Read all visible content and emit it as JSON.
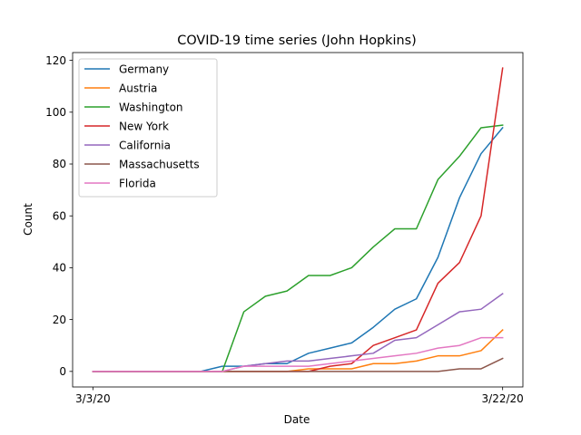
{
  "chart_data": {
    "type": "line",
    "title": "COVID-19 time series (John Hopkins)",
    "xlabel": "Date",
    "ylabel": "Count",
    "x": [
      "3/3/20",
      "3/4/20",
      "3/5/20",
      "3/6/20",
      "3/7/20",
      "3/8/20",
      "3/9/20",
      "3/10/20",
      "3/11/20",
      "3/12/20",
      "3/13/20",
      "3/14/20",
      "3/15/20",
      "3/16/20",
      "3/17/20",
      "3/18/20",
      "3/19/20",
      "3/20/20",
      "3/21/20",
      "3/22/20"
    ],
    "x_tick_labels": [
      "3/3/20",
      "3/22/20"
    ],
    "y_ticks": [
      0,
      20,
      40,
      60,
      80,
      100,
      120
    ],
    "ylim": [
      -6,
      123
    ],
    "grid": false,
    "legend_position": "top-left",
    "series": [
      {
        "name": "Germany",
        "color": "#1f77b4",
        "values": [
          0,
          0,
          0,
          0,
          0,
          0,
          2,
          2,
          3,
          3,
          7,
          9,
          11,
          17,
          24,
          28,
          44,
          67,
          84,
          94
        ]
      },
      {
        "name": "Austria",
        "color": "#ff7f0e",
        "values": [
          0,
          0,
          0,
          0,
          0,
          0,
          0,
          0,
          0,
          0,
          1,
          1,
          1,
          3,
          3,
          4,
          6,
          6,
          8,
          16
        ]
      },
      {
        "name": "Washington",
        "color": "#2ca02c",
        "values": [
          0,
          0,
          0,
          0,
          0,
          0,
          0,
          23,
          29,
          31,
          37,
          37,
          40,
          48,
          55,
          55,
          74,
          83,
          94,
          95
        ]
      },
      {
        "name": "New York",
        "color": "#d62728",
        "values": [
          0,
          0,
          0,
          0,
          0,
          0,
          0,
          0,
          0,
          0,
          0,
          2,
          3,
          10,
          13,
          16,
          34,
          42,
          60,
          117
        ]
      },
      {
        "name": "California",
        "color": "#9467bd",
        "values": [
          0,
          0,
          0,
          0,
          0,
          0,
          0,
          2,
          3,
          4,
          4,
          5,
          6,
          7,
          12,
          13,
          18,
          23,
          24,
          30
        ]
      },
      {
        "name": "Massachusetts",
        "color": "#8c564b",
        "values": [
          0,
          0,
          0,
          0,
          0,
          0,
          0,
          0,
          0,
          0,
          0,
          0,
          0,
          0,
          0,
          0,
          0,
          1,
          1,
          5
        ]
      },
      {
        "name": "Florida",
        "color": "#e377c2",
        "values": [
          0,
          0,
          0,
          0,
          0,
          0,
          0,
          2,
          2,
          2,
          2,
          3,
          4,
          5,
          6,
          7,
          9,
          10,
          13,
          13
        ]
      }
    ]
  }
}
